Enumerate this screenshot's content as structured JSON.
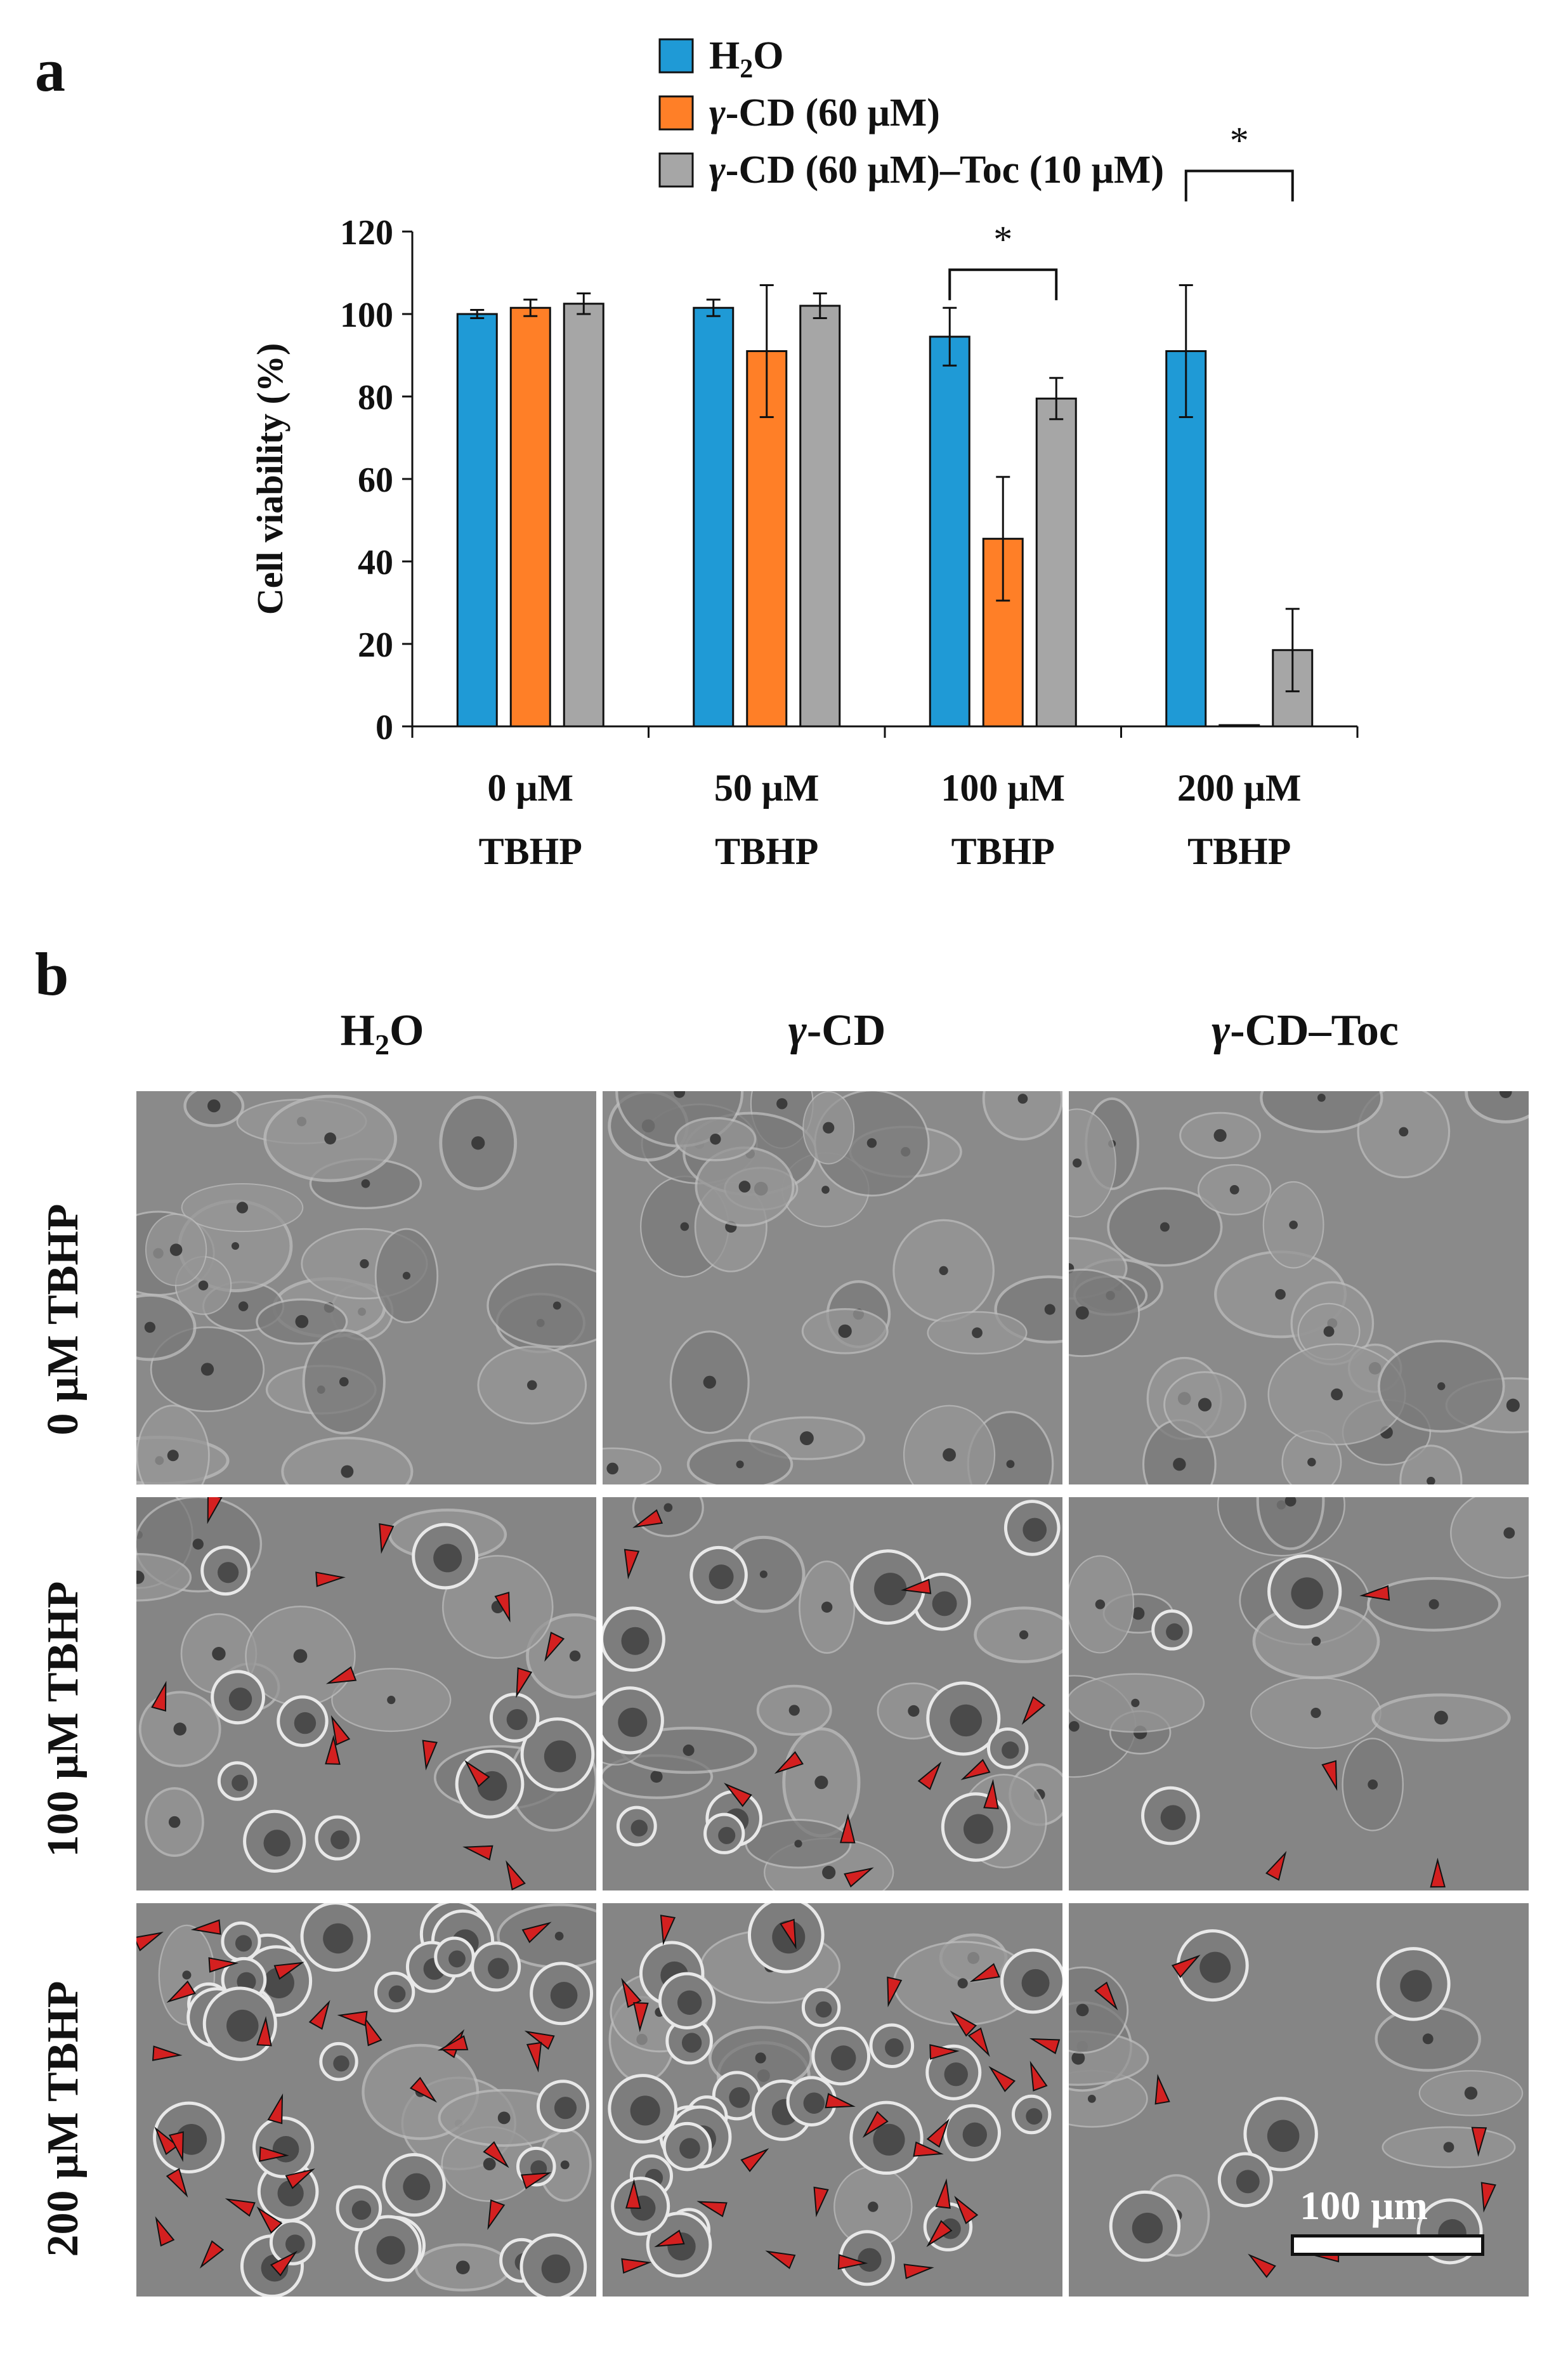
{
  "panel_a": {
    "letter": "a"
  },
  "panel_b": {
    "letter": "b",
    "columns": [
      {
        "main": "H",
        "sub": "2",
        "tail": "O"
      },
      {
        "italic": "γ",
        "tail": "-CD"
      },
      {
        "italic": "γ",
        "tail": "-CD–Toc"
      }
    ],
    "rows": [
      "0 μM TBHP",
      "100 μM TBHP",
      "200 μM TBHP"
    ],
    "scale_bar_label": "100 μm",
    "arrowhead_color": "#d42020"
  },
  "chart_data": {
    "type": "bar",
    "ylabel": "Cell viability (%)",
    "xlabel": "",
    "ylim": [
      0,
      120
    ],
    "yticks": [
      0,
      20,
      40,
      60,
      80,
      100,
      120
    ],
    "categories": [
      {
        "line1": "0 μM",
        "line2": "TBHP"
      },
      {
        "line1": "50 μM",
        "line2": "TBHP"
      },
      {
        "line1": "100 μM",
        "line2": "TBHP"
      },
      {
        "line1": "200 μM",
        "line2": "TBHP"
      }
    ],
    "series": [
      {
        "name": "H2O",
        "legend": {
          "main": "H",
          "sub": "2",
          "tail": "O"
        },
        "color": "#1f9ad6",
        "values": [
          100,
          101.5,
          94.5,
          91
        ],
        "errors": [
          1,
          2,
          7,
          16
        ]
      },
      {
        "name": "γ-CD (60 μM)",
        "legend": {
          "italic": "γ",
          "tail": "-CD (60 μM)"
        },
        "color": "#ff7f27",
        "values": [
          101.5,
          91,
          45.5,
          0.3
        ],
        "errors": [
          2,
          16,
          15,
          0.2
        ]
      },
      {
        "name": "γ-CD (60 μM)–Toc (10 μM)",
        "legend": {
          "italic": "γ",
          "tail": "-CD (60 μM)–Toc (10 μM)"
        },
        "color": "#a6a6a6",
        "values": [
          102.5,
          102,
          79.5,
          18.5
        ],
        "errors": [
          2.5,
          3,
          5,
          10
        ]
      }
    ],
    "significance": [
      {
        "category": 2,
        "from_series": 0,
        "to_series": 2,
        "label": "*"
      },
      {
        "category": 3,
        "from_series": 0,
        "to_series": 2,
        "label": "*"
      }
    ],
    "legend_position": "top"
  }
}
